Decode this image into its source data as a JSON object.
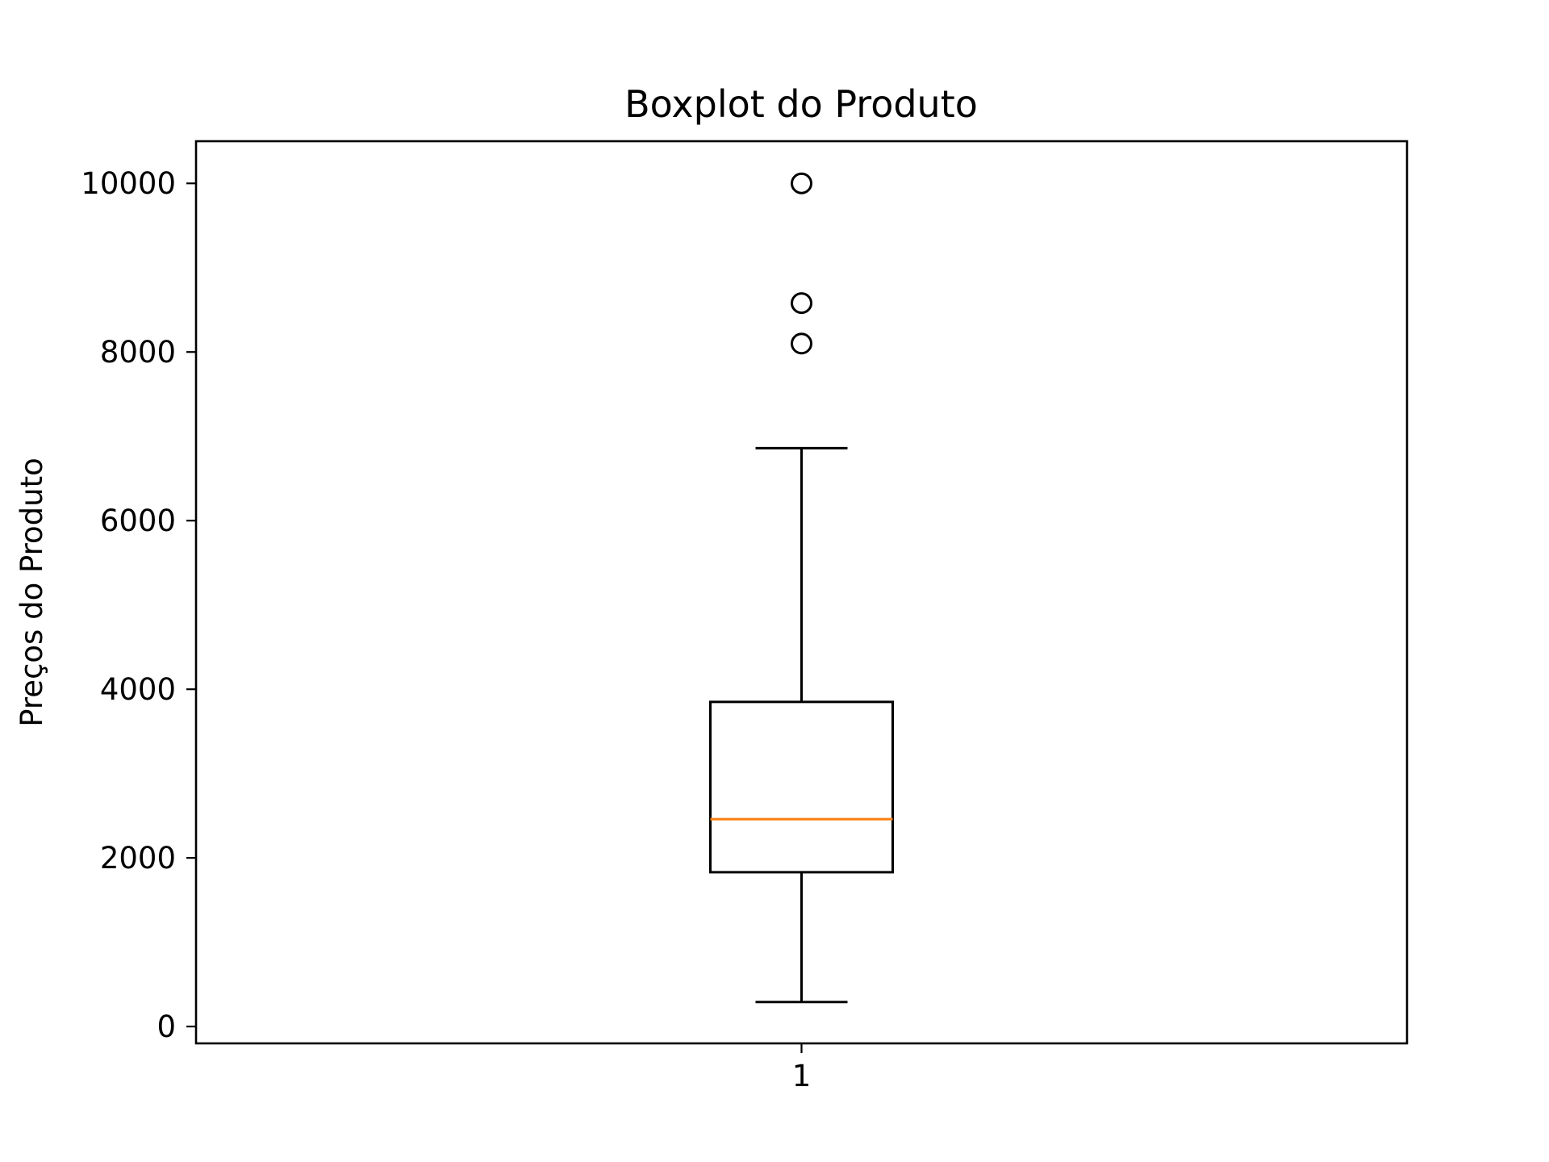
{
  "chart_data": {
    "type": "boxplot",
    "title": "Boxplot do Produto",
    "xlabel": "",
    "ylabel": "Preços do Produto",
    "ylim": [
      -200,
      10500
    ],
    "yticks": [
      0,
      2000,
      4000,
      6000,
      8000,
      10000
    ],
    "yticklabels": [
      "0",
      "2000",
      "4000",
      "6000",
      "8000",
      "10000"
    ],
    "categories": [
      "1"
    ],
    "boxes": [
      {
        "name": "1",
        "whisker_low": 290,
        "q1": 1830,
        "median": 2460,
        "q3": 3850,
        "whisker_high": 6860,
        "outliers": [
          8100,
          8580,
          10000
        ]
      }
    ],
    "colors": {
      "median": "#ff7f0e",
      "box": "#000000"
    }
  }
}
